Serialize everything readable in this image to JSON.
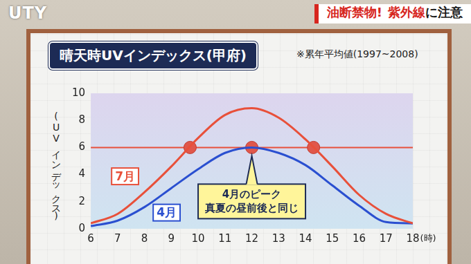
{
  "header": {
    "channel": "UTY",
    "banner": [
      {
        "text": "油断禁物!",
        "color": "#d7261e"
      },
      {
        "text": "紫外線",
        "color": "#d7261e"
      },
      {
        "text": "に注意",
        "color": "#1a1a1a"
      }
    ]
  },
  "chart_data": {
    "type": "line",
    "title": "晴天時UVインデックス(甲府)",
    "note": "※累年平均値(1997~2008)",
    "y_label": "(UVインデックス)",
    "x_label": "(時)",
    "x": [
      6,
      7,
      8,
      9,
      10,
      11,
      12,
      13,
      14,
      15,
      16,
      17,
      18
    ],
    "series": [
      {
        "name": "7月",
        "color": "#e8503a",
        "values": [
          0.4,
          1.1,
          2.7,
          4.6,
          6.7,
          8.4,
          8.9,
          8.2,
          6.6,
          4.6,
          2.5,
          1.1,
          0.4
        ]
      },
      {
        "name": "4月",
        "color": "#2a4fd0",
        "values": [
          0.2,
          0.6,
          1.6,
          3.0,
          4.4,
          5.6,
          6.0,
          5.6,
          4.7,
          3.2,
          1.7,
          0.5,
          0.4
        ]
      }
    ],
    "xlim": [
      6,
      18
    ],
    "xticks": [
      6,
      7,
      8,
      9,
      10,
      11,
      12,
      13,
      14,
      15,
      16,
      17,
      18
    ],
    "ylim": [
      0,
      10
    ],
    "yticks": [
      0,
      2,
      4,
      6,
      8,
      10
    ],
    "grid": false,
    "reference_line": {
      "value": 6,
      "color": "#e8503a"
    },
    "highlight_points": {
      "x": [
        9.7,
        12,
        14.3
      ],
      "y": [
        6,
        6,
        6
      ],
      "color": "#e0574b"
    },
    "annotation": {
      "text": [
        "4月のピーク",
        "真夏の昼前後と同じ"
      ],
      "x": 12,
      "y": 6
    }
  }
}
